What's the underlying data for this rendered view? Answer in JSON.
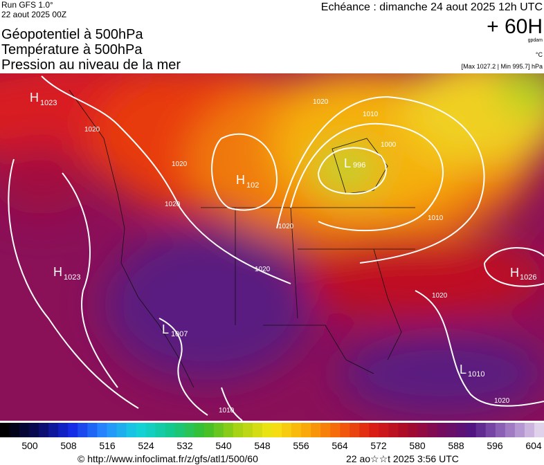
{
  "header": {
    "run": "Run GFS 1.0°",
    "run_date": "22 aout 2025 00Z",
    "valid": "Echéance : dimanche 24 aout 2025 12h UTC",
    "lead": "+ 60H",
    "unit_geo": "gpdam",
    "unit_temp": "°C",
    "pressure_range": "[Max 1027.2 | Min 995.7] hPa",
    "title_lines": [
      "Géopotentiel à 500hPa",
      "Température à 500hPa",
      "Pression au niveau de la mer"
    ]
  },
  "systems": [
    {
      "type": "H",
      "value": "1023"
    },
    {
      "type": "H",
      "value": "1023"
    },
    {
      "type": "H",
      "value": "102"
    },
    {
      "type": "L",
      "value": "996"
    },
    {
      "type": "L",
      "value": "1007"
    },
    {
      "type": "H",
      "value": "1026"
    },
    {
      "type": "L",
      "value": "1010"
    }
  ],
  "isobar_labels": [
    "1020",
    "1020",
    "1020",
    "1020",
    "1010",
    "1000",
    "1020",
    "1020",
    "1010",
    "1020",
    "1020",
    "1010"
  ],
  "colorbar": {
    "ticks": [
      "500",
      "508",
      "516",
      "524",
      "532",
      "540",
      "548",
      "556",
      "564",
      "572",
      "580",
      "588",
      "596",
      "604"
    ]
  },
  "footer": {
    "source": "© http://www.infoclimat.fr/z/gfs/atl1/500/60",
    "generated": "22 ao☆☆t 2025  3:56 UTC"
  }
}
